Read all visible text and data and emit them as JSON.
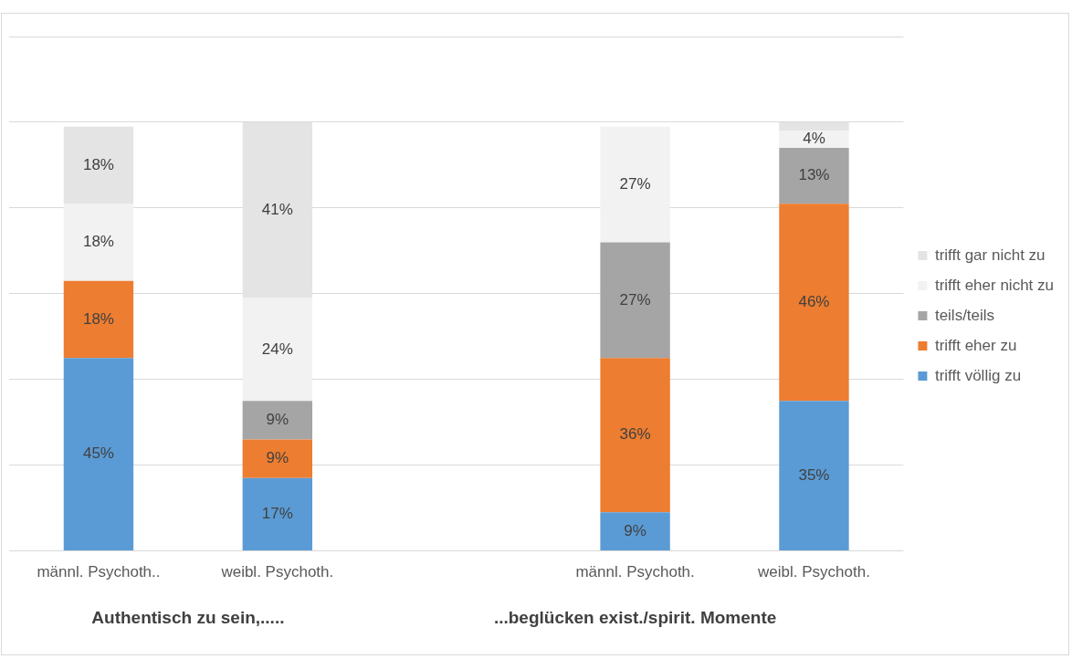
{
  "chart_data": {
    "type": "bar",
    "stacked": true,
    "categories": [
      "männl. Psychoth..",
      "weibl. Psychoth.",
      null,
      "männl. Psychoth.",
      "weibl. Psychoth."
    ],
    "series": [
      {
        "name": "trifft völlig zu",
        "color": "#5b9bd5",
        "values": [
          45,
          17,
          null,
          9,
          35
        ],
        "value_labels": [
          "45%",
          "17%",
          null,
          "9%",
          "35%"
        ]
      },
      {
        "name": "trifft eher zu",
        "color": "#ed7d31",
        "values": [
          18,
          9,
          null,
          36,
          46
        ],
        "value_labels": [
          "18%",
          "9%",
          null,
          "36%",
          "46%"
        ]
      },
      {
        "name": "teils/teils",
        "color": "#a5a5a5",
        "values": [
          0,
          9,
          null,
          27,
          13
        ],
        "value_labels": [
          null,
          "9%",
          null,
          "27%",
          "13%"
        ]
      },
      {
        "name": "trifft eher nicht zu",
        "color": "#f2f2f2",
        "values": [
          18,
          24,
          null,
          27,
          4
        ],
        "value_labels": [
          "18%",
          "24%",
          null,
          "27%",
          "4%"
        ]
      },
      {
        "name": "trifft gar nicht zu",
        "color": "#e4e4e4",
        "values": [
          18,
          41,
          null,
          0,
          2
        ],
        "value_labels": [
          "18%",
          "41%",
          null,
          null,
          null
        ]
      }
    ],
    "ylim": [
      0,
      120
    ],
    "yticks": [
      {
        "value": 0,
        "label": null
      },
      {
        "value": 20,
        "label": null
      },
      {
        "value": 40,
        "label": null
      },
      {
        "value": 60,
        "label": null
      },
      {
        "value": 80,
        "label": null
      },
      {
        "value": 100,
        "label": null
      },
      {
        "value": 120,
        "label": null
      }
    ],
    "tick_labels": "x",
    "grid": "y",
    "legend": "right",
    "annotations": [
      "Authentisch zu sein,.....",
      "...beglücken exist./spirit. Momente"
    ]
  }
}
